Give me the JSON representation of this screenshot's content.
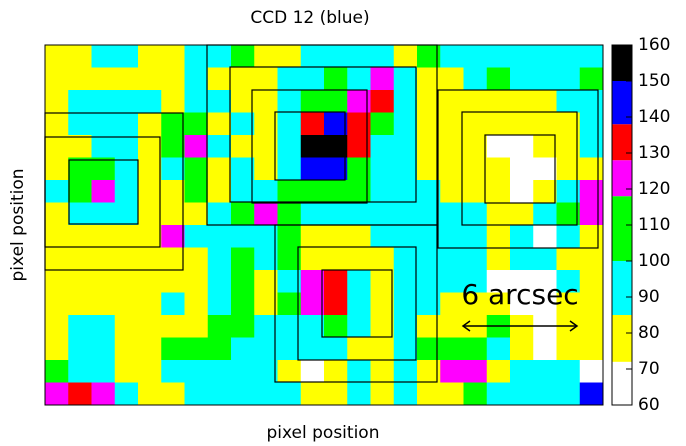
{
  "chart_data": {
    "type": "heatmap",
    "title": "CCD 12 (blue)",
    "xlabel": "pixel position",
    "ylabel": "pixel position",
    "annotation": "6 arcsec",
    "z": [
      [
        78,
        78,
        92,
        92,
        78,
        78,
        92,
        92,
        108,
        78,
        78,
        92,
        92,
        92,
        92,
        78,
        108,
        92,
        92,
        92,
        92,
        92,
        92,
        92
      ],
      [
        78,
        78,
        78,
        78,
        78,
        78,
        92,
        78,
        78,
        78,
        92,
        92,
        108,
        92,
        122,
        92,
        78,
        78,
        92,
        108,
        92,
        92,
        92,
        108
      ],
      [
        78,
        92,
        92,
        92,
        92,
        78,
        92,
        92,
        78,
        78,
        92,
        108,
        108,
        122,
        132,
        92,
        78,
        78,
        78,
        78,
        78,
        78,
        92,
        92
      ],
      [
        78,
        92,
        92,
        92,
        78,
        108,
        108,
        78,
        92,
        78,
        92,
        132,
        144,
        132,
        108,
        92,
        78,
        78,
        78,
        78,
        78,
        78,
        78,
        92
      ],
      [
        78,
        78,
        92,
        92,
        78,
        108,
        122,
        92,
        78,
        78,
        92,
        155,
        155,
        132,
        92,
        92,
        78,
        78,
        78,
        65,
        65,
        78,
        78,
        92
      ],
      [
        78,
        108,
        108,
        92,
        78,
        92,
        108,
        78,
        92,
        78,
        92,
        144,
        144,
        108,
        92,
        92,
        78,
        78,
        78,
        78,
        65,
        65,
        78,
        78
      ],
      [
        92,
        108,
        122,
        92,
        78,
        78,
        108,
        78,
        92,
        92,
        108,
        108,
        108,
        108,
        92,
        92,
        92,
        78,
        78,
        78,
        65,
        78,
        92,
        122
      ],
      [
        78,
        92,
        92,
        92,
        78,
        78,
        78,
        92,
        108,
        122,
        108,
        92,
        92,
        92,
        92,
        92,
        92,
        92,
        92,
        78,
        78,
        92,
        108,
        122
      ],
      [
        78,
        78,
        78,
        78,
        78,
        122,
        92,
        92,
        92,
        92,
        108,
        78,
        78,
        78,
        92,
        92,
        92,
        92,
        92,
        78,
        92,
        65,
        92,
        78
      ],
      [
        78,
        78,
        78,
        78,
        78,
        78,
        78,
        92,
        108,
        92,
        108,
        78,
        78,
        78,
        78,
        92,
        92,
        92,
        92,
        78,
        92,
        92,
        78,
        78
      ],
      [
        78,
        78,
        78,
        78,
        78,
        78,
        78,
        92,
        108,
        78,
        92,
        122,
        132,
        92,
        78,
        92,
        92,
        92,
        92,
        65,
        65,
        65,
        92,
        78
      ],
      [
        78,
        78,
        78,
        78,
        78,
        92,
        78,
        92,
        108,
        78,
        108,
        122,
        132,
        92,
        78,
        92,
        92,
        78,
        78,
        78,
        65,
        65,
        78,
        78
      ],
      [
        78,
        92,
        92,
        78,
        78,
        78,
        78,
        108,
        108,
        92,
        92,
        92,
        108,
        92,
        78,
        92,
        78,
        78,
        78,
        108,
        78,
        65,
        78,
        78
      ],
      [
        78,
        92,
        92,
        78,
        78,
        108,
        108,
        108,
        92,
        92,
        92,
        92,
        92,
        78,
        78,
        92,
        108,
        108,
        108,
        92,
        78,
        65,
        78,
        78
      ],
      [
        108,
        92,
        92,
        78,
        78,
        92,
        92,
        92,
        92,
        92,
        78,
        65,
        78,
        92,
        78,
        92,
        78,
        122,
        122,
        78,
        92,
        92,
        92,
        65
      ],
      [
        122,
        132,
        122,
        92,
        78,
        78,
        92,
        92,
        92,
        92,
        92,
        78,
        78,
        92,
        78,
        92,
        78,
        78,
        108,
        92,
        92,
        92,
        92,
        144
      ]
    ],
    "color_bounds": [
      60,
      72,
      85,
      100,
      118,
      128,
      138,
      150,
      160
    ],
    "colors": [
      "#ffffff",
      "#ffff00",
      "#00ffff",
      "#00ff00",
      "#ff00ff",
      "#ff0000",
      "#0000ff",
      "#000000"
    ],
    "clim": [
      60,
      160
    ],
    "cticks": [
      60,
      70,
      80,
      90,
      100,
      110,
      120,
      130,
      140,
      150,
      160
    ]
  }
}
